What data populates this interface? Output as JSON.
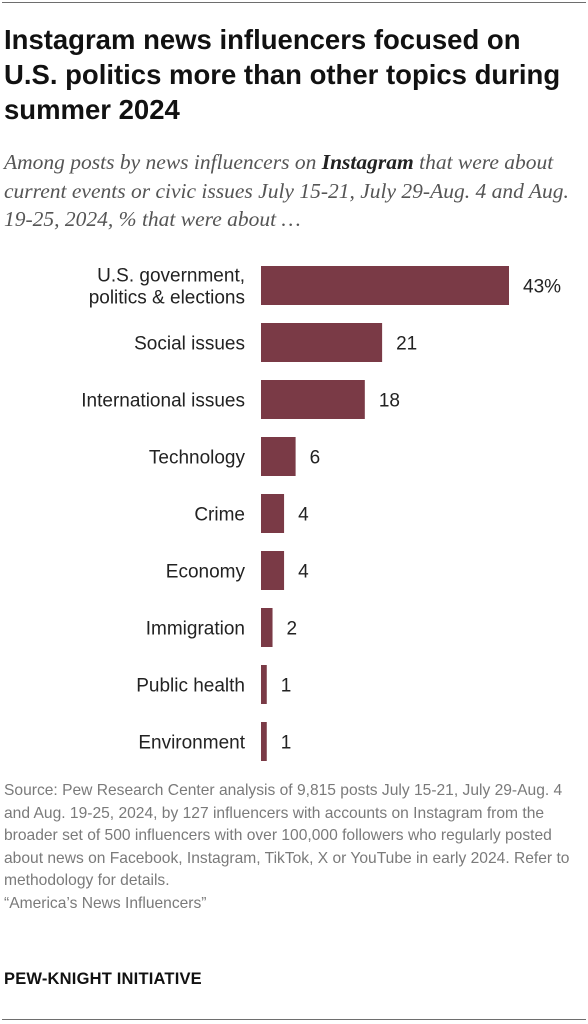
{
  "header": {
    "title": "Instagram news influencers focused on U.S. politics more than other topics during summer 2024",
    "subtitle_before": "Among posts by news influencers on ",
    "subtitle_bold": "Instagram",
    "subtitle_after": " that were about current events or civic issues July 15-21, July 29-Aug. 4 and Aug. 19-25, 2024, % that were about …"
  },
  "colors": {
    "bar": "#7a3a46",
    "text": "#222222",
    "note": "#7a7a7a"
  },
  "chart_data": {
    "type": "bar",
    "orientation": "horizontal",
    "categories": [
      [
        "U.S. government,",
        "politics & elections"
      ],
      [
        "Social issues"
      ],
      [
        "International issues"
      ],
      [
        "Technology"
      ],
      [
        "Crime"
      ],
      [
        "Economy"
      ],
      [
        "Immigration"
      ],
      [
        "Public health"
      ],
      [
        "Environment"
      ]
    ],
    "values": [
      43,
      21,
      18,
      6,
      4,
      4,
      2,
      1,
      1
    ],
    "value_labels": [
      "43%",
      "21",
      "18",
      "6",
      "4",
      "4",
      "2",
      "1",
      "1"
    ],
    "unit": "%",
    "xlim": [
      0,
      43
    ],
    "grid": false,
    "legend": "none"
  },
  "footer": {
    "source": "Source: Pew Research Center analysis of 9,815 posts July 15-21, July 29-Aug. 4 and Aug. 19-25, 2024, by 127 influencers with accounts on Instagram from the broader set of 500 influencers with over 100,000 followers who regularly posted about news on Facebook, Instagram, TikTok, X or YouTube in early 2024. Refer to methodology for details.",
    "report": "“America’s News Influencers”",
    "brand": "PEW-KNIGHT INITIATIVE"
  }
}
